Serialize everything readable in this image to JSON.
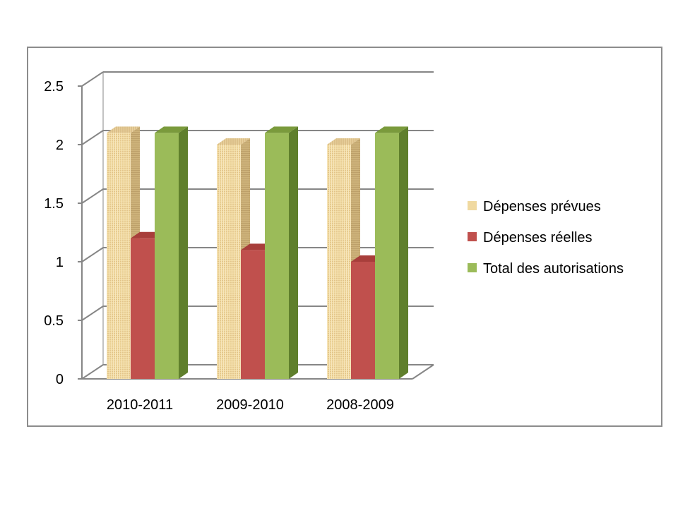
{
  "chart_data": {
    "type": "bar",
    "style": "3d-clustered-column",
    "categories": [
      "2010-2011",
      "2009-2010",
      "2008-2009"
    ],
    "series": [
      {
        "name": "Dépenses prévues",
        "values": [
          2.1,
          2.0,
          2.0
        ],
        "color": "#f0d9a0",
        "pattern": "woven-texture"
      },
      {
        "name": "Dépenses réelles",
        "values": [
          1.2,
          1.1,
          1.0
        ],
        "color": "#c0504d"
      },
      {
        "name": "Total des autorisations",
        "values": [
          2.1,
          2.1,
          2.1
        ],
        "color": "#9bbb59"
      }
    ],
    "y_ticks": [
      "0",
      "0.5",
      "1",
      "1.5",
      "2",
      "2.5"
    ],
    "ylim": [
      0,
      2.5
    ],
    "grid": true,
    "legend_position": "right",
    "title": "",
    "xlabel": "",
    "ylabel": ""
  }
}
